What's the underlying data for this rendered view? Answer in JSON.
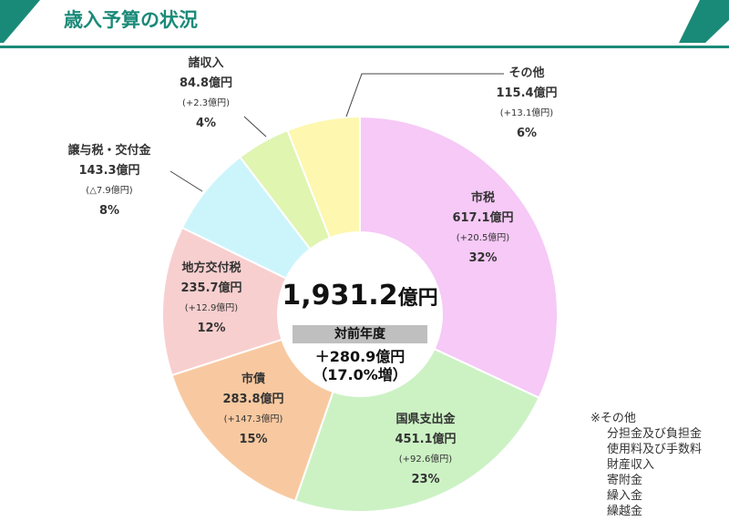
{
  "title": "歳入予算の状況",
  "colors": {
    "accent": "#1a8a78"
  },
  "center": {
    "total": "1,931.2",
    "unit": "億円",
    "tag": "対前年度",
    "diff": "＋280.9億円",
    "pct": "（17.0%増）"
  },
  "chart_data": {
    "type": "pie",
    "variant": "donut",
    "unit": "億円",
    "slices": [
      {
        "label": "市税",
        "value": 617.1,
        "value_text": "617.1億円",
        "change": "(+20.5億円)",
        "percent": "32%",
        "color": "#f6c9f6"
      },
      {
        "label": "国県支出金",
        "value": 451.1,
        "value_text": "451.1億円",
        "change": "(+92.6億円)",
        "percent": "23%",
        "color": "#ccf2c4"
      },
      {
        "label": "市債",
        "value": 283.8,
        "value_text": "283.8億円",
        "change": "(+147.3億円)",
        "percent": "15%",
        "color": "#f8c9a0"
      },
      {
        "label": "地方交付税",
        "value": 235.7,
        "value_text": "235.7億円",
        "change": "(+12.9億円)",
        "percent": "12%",
        "color": "#f8cfcf"
      },
      {
        "label": "譲与税・交付金",
        "value": 143.3,
        "value_text": "143.3億円",
        "change": "(△7.9億円)",
        "percent": "8%",
        "color": "#ccf5fb"
      },
      {
        "label": "諸収入",
        "value": 84.8,
        "value_text": "84.8億円",
        "change": "(+2.3億円)",
        "percent": "4%",
        "color": "#dff5b0"
      },
      {
        "label": "その他",
        "value": 115.4,
        "value_text": "115.4億円",
        "change": "(+13.1億円)",
        "percent": "6%",
        "color": "#fdf7b0"
      }
    ]
  },
  "note": {
    "title": "※その他",
    "items": [
      "分担金及び負担金",
      "使用料及び手数料",
      "財産収入",
      "寄附金",
      "繰入金",
      "繰越金"
    ]
  }
}
